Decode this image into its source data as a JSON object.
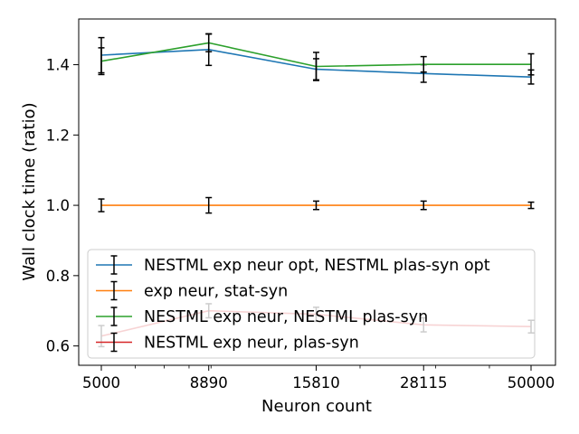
{
  "chart_data": {
    "type": "line",
    "xscale": "log",
    "x": [
      5000,
      8890,
      15810,
      28115,
      50000
    ],
    "x_tick_labels": [
      "5000",
      "8890",
      "15810",
      "28115",
      "50000"
    ],
    "xlabel": "Neuron count",
    "ylabel": "Wall clock time (ratio)",
    "ylim": [
      0.545,
      1.53
    ],
    "y_ticks": [
      0.6,
      0.8,
      1.0,
      1.2,
      1.4
    ],
    "y_tick_labels": [
      "0.6",
      "0.8",
      "1.0",
      "1.2",
      "1.4"
    ],
    "grid": false,
    "legend_position": "lower-left",
    "series": [
      {
        "name": "NESTML exp neur opt, NESTML plas-syn opt",
        "color": "#1f77b4",
        "values": [
          1.427,
          1.443,
          1.387,
          1.375,
          1.365
        ],
        "errors": [
          0.05,
          0.045,
          0.03,
          0.025,
          0.02
        ]
      },
      {
        "name": "exp neur, stat-syn",
        "color": "#ff7f0e",
        "values": [
          1.0,
          1.0,
          1.0,
          1.0,
          1.0
        ],
        "errors": [
          0.018,
          0.022,
          0.012,
          0.012,
          0.009
        ]
      },
      {
        "name": "NESTML exp neur, NESTML plas-syn",
        "color": "#2ca02c",
        "values": [
          1.41,
          1.462,
          1.395,
          1.401,
          1.401
        ],
        "errors": [
          0.038,
          0.025,
          0.04,
          0.022,
          0.03
        ]
      },
      {
        "name": "NESTML exp neur, plas-syn",
        "color": "#d62728",
        "values": [
          0.628,
          0.7,
          0.69,
          0.66,
          0.655
        ],
        "errors": [
          0.03,
          0.02,
          0.02,
          0.02,
          0.018
        ]
      }
    ]
  }
}
